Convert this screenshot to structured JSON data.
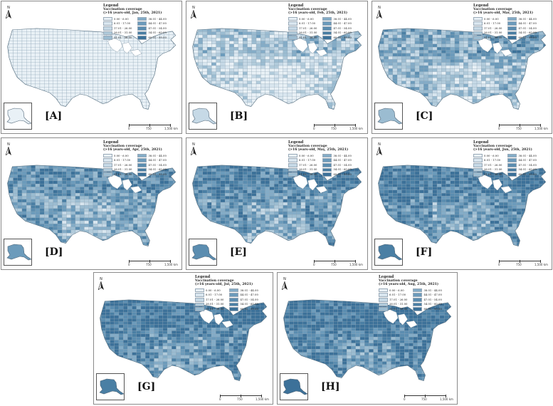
{
  "legend_title": "Legend",
  "legend_subtitle": "Vaccination coverage",
  "legend_classes": [
    "0.00 - 6.00",
    "6.01 - 17.00",
    "17.01 - 26.00",
    "26.01 - 31.00",
    "31.01 - 38.00",
    "38.01 - 44.00",
    "44.01 - 47.00",
    "47.01 - 54.00",
    "54.01 - 60.00",
    "60.01 - 99.00"
  ],
  "legend_colors": [
    "#e9f1f6",
    "#d9e6ef",
    "#c6d9e6",
    "#b1cbdb",
    "#9bbcd1",
    "#84acc7",
    "#6c9bbb",
    "#5b8db0",
    "#4a7fa4",
    "#3c7199"
  ],
  "north_label": "N",
  "scale_labels": [
    "0",
    "750",
    "1,500 km"
  ],
  "panels": [
    {
      "label": "[A]",
      "date": "(>16 years-old, Jan, 25th, 2021)",
      "level": 0.0
    },
    {
      "label": "[B]",
      "date": "(>16 years-old, Feb, 25th, 2021)",
      "level": 0.18
    },
    {
      "label": "[C]",
      "date": "(>16 years-old, Mar, 25th, 2021)",
      "level": 0.42
    },
    {
      "label": "[D]",
      "date": "(>16 years-old, Apr, 25th, 2021)",
      "level": 0.62
    },
    {
      "label": "[E]",
      "date": "(>16 years-old, May, 25th, 2021)",
      "level": 0.7
    },
    {
      "label": "[F]",
      "date": "(>16 years-old, Jun, 25th, 2021)",
      "level": 0.76
    },
    {
      "label": "[G]",
      "date": "(>16 years-old, Jul, 25th, 2021)",
      "level": 0.82
    },
    {
      "label": "[H]",
      "date": "(>16 years-old, Aug, 25th, 2021)",
      "level": 0.86
    }
  ]
}
